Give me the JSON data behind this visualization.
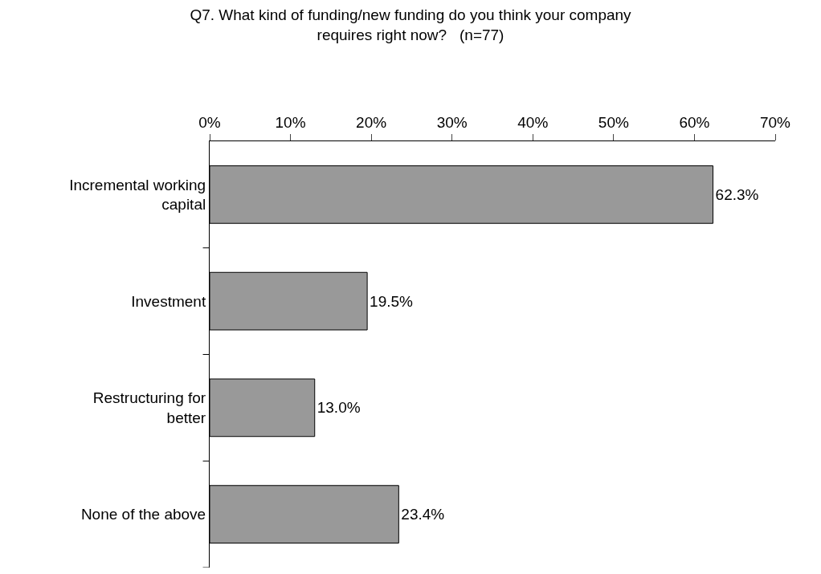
{
  "chart_data": {
    "type": "bar",
    "orientation": "horizontal",
    "title": "Q7. What kind of funding/new funding do you think your company requires right now?   (n=77)",
    "categories": [
      "Incremental working capital",
      "Investment",
      "Restructuring for better",
      "None of the above"
    ],
    "values": [
      62.3,
      19.5,
      13.0,
      23.4
    ],
    "value_labels": [
      "62.3%",
      "19.5%",
      "13.0%",
      "23.4%"
    ],
    "color": "#999999",
    "xlim": [
      0,
      70
    ],
    "xticks": [
      {
        "value": 0,
        "label": "0%"
      },
      {
        "value": 10,
        "label": "10%"
      },
      {
        "value": 20,
        "label": "20%"
      },
      {
        "value": 30,
        "label": "30%"
      },
      {
        "value": 40,
        "label": "40%"
      },
      {
        "value": 50,
        "label": "50%"
      },
      {
        "value": 60,
        "label": "60%"
      },
      {
        "value": 70,
        "label": "70%"
      }
    ],
    "legend": false
  }
}
